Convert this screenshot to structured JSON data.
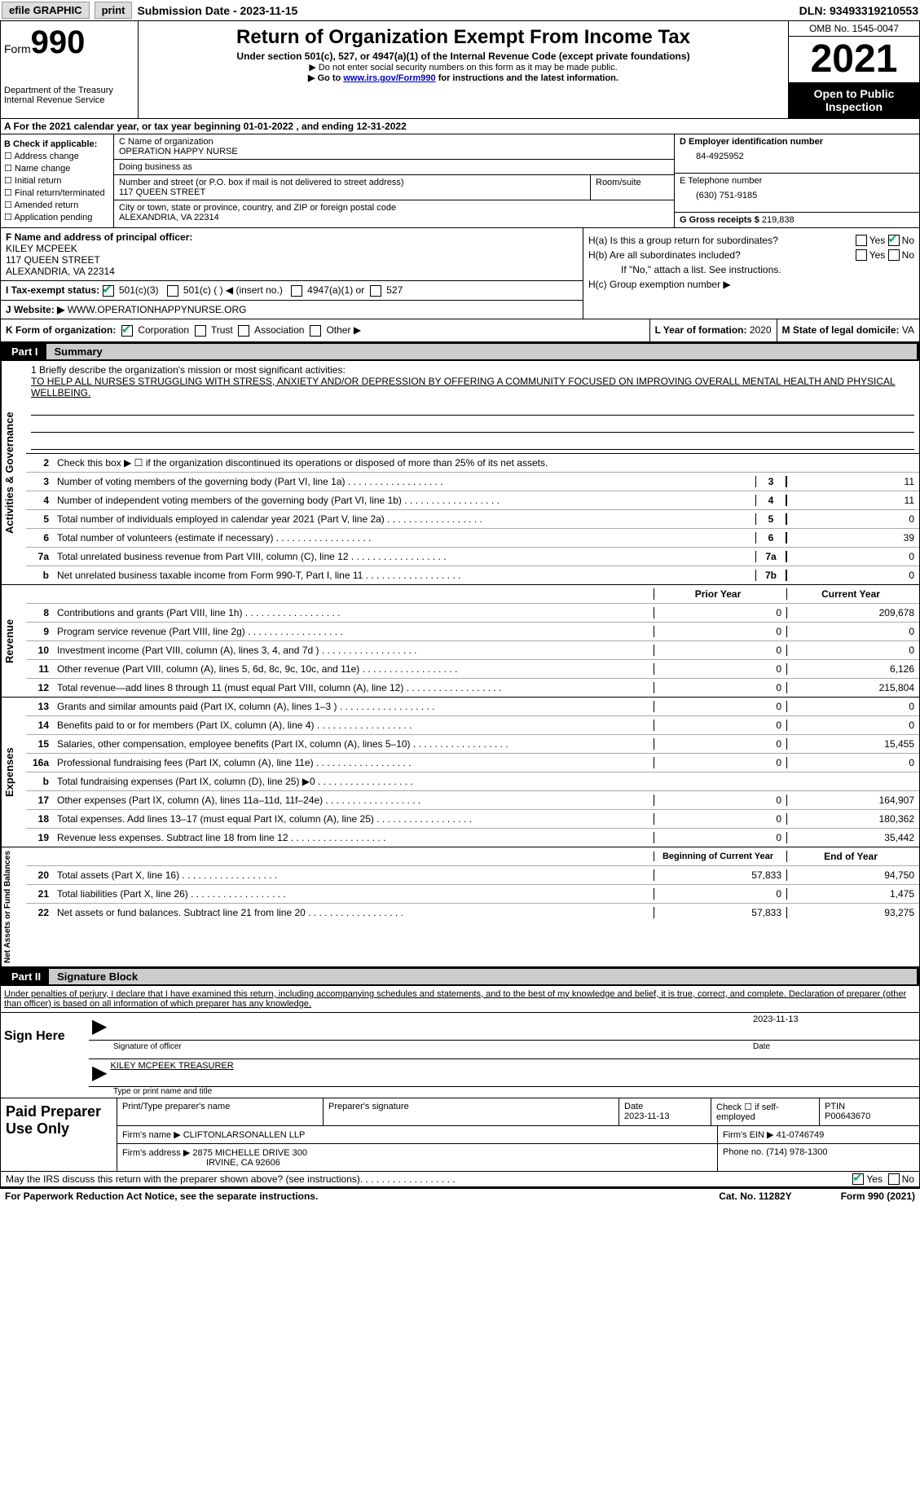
{
  "top": {
    "efile": "efile GRAPHIC",
    "print": "print",
    "sub_label": "Submission Date - ",
    "sub_date": "2023-11-15",
    "dln_label": "DLN: ",
    "dln": "93493319210553"
  },
  "header": {
    "form_word": "Form",
    "form_num": "990",
    "dept": "Department of the Treasury Internal Revenue Service",
    "title": "Return of Organization Exempt From Income Tax",
    "subtitle": "Under section 501(c), 527, or 4947(a)(1) of the Internal Revenue Code (except private foundations)",
    "note1": "▶ Do not enter social security numbers on this form as it may be made public.",
    "note2_pre": "▶ Go to ",
    "note2_link": "www.irs.gov/Form990",
    "note2_post": " for instructions and the latest information.",
    "omb": "OMB No. 1545-0047",
    "year": "2021",
    "inspect": "Open to Public Inspection"
  },
  "rowA": "A For the 2021 calendar year, or tax year beginning 01-01-2022    , and ending 12-31-2022",
  "colB": {
    "title": "B Check if applicable:",
    "items": [
      "Address change",
      "Name change",
      "Initial return",
      "Final return/terminated",
      "Amended return",
      "Application pending"
    ]
  },
  "colC": {
    "name_label": "C Name of organization",
    "name": "OPERATION HAPPY NURSE",
    "dba_label": "Doing business as",
    "dba": "",
    "addr_label": "Number and street (or P.O. box if mail is not delivered to street address)",
    "addr": "117 QUEEN STREET",
    "room_label": "Room/suite",
    "city_label": "City or town, state or province, country, and ZIP or foreign postal code",
    "city": "ALEXANDRIA, VA  22314"
  },
  "colD": {
    "ein_label": "D Employer identification number",
    "ein": "84-4925952",
    "phone_label": "E Telephone number",
    "phone": "(630) 751-9185",
    "gross_label": "G Gross receipts $ ",
    "gross": "219,838"
  },
  "rowF": {
    "label": "F  Name and address of principal officer:",
    "name": "KILEY MCPEEK",
    "addr1": "117 QUEEN STREET",
    "addr2": "ALEXANDRIA, VA  22314"
  },
  "rowH": {
    "ha": "H(a)  Is this a group return for subordinates?",
    "hb": "H(b)  Are all subordinates included?",
    "hb_note": "If \"No,\" attach a list. See instructions.",
    "hc": "H(c)  Group exemption number ▶"
  },
  "rowI": {
    "label": "I     Tax-exempt status:",
    "o1": "501(c)(3)",
    "o2": "501(c) (   ) ◀ (insert no.)",
    "o3": "4947(a)(1) or",
    "o4": "527"
  },
  "rowJ": {
    "label": "J    Website: ▶  ",
    "value": "WWW.OPERATIONHAPPYNURSE.ORG"
  },
  "rowK": {
    "label": "K Form of organization:",
    "corp": "Corporation",
    "trust": "Trust",
    "assoc": "Association",
    "other": "Other ▶"
  },
  "rowL": {
    "label": "L Year of formation: ",
    "value": "2020"
  },
  "rowM": {
    "label": "M State of legal domicile: ",
    "value": "VA"
  },
  "part1": {
    "label": "Part I",
    "title": "Summary"
  },
  "mission": {
    "label": "1   Briefly describe the organization's mission or most significant activities:",
    "text": "TO HELP ALL NURSES STRUGGLING WITH STRESS, ANXIETY AND/OR DEPRESSION BY OFFERING A COMMUNITY FOCUSED ON IMPROVING OVERALL MENTAL HEALTH AND PHYSICAL WELLBEING."
  },
  "line2": "Check this box ▶ ☐  if the organization discontinued its operations or disposed of more than 25% of its net assets.",
  "side_labels": {
    "gov": "Activities & Governance",
    "rev": "Revenue",
    "exp": "Expenses",
    "net": "Net Assets or Fund Balances"
  },
  "gov_rows": [
    {
      "n": "3",
      "d": "Number of voting members of the governing body (Part VI, line 1a)",
      "box": "3",
      "v": "11"
    },
    {
      "n": "4",
      "d": "Number of independent voting members of the governing body (Part VI, line 1b)",
      "box": "4",
      "v": "11"
    },
    {
      "n": "5",
      "d": "Total number of individuals employed in calendar year 2021 (Part V, line 2a)",
      "box": "5",
      "v": "0"
    },
    {
      "n": "6",
      "d": "Total number of volunteers (estimate if necessary)",
      "box": "6",
      "v": "39"
    },
    {
      "n": "7a",
      "d": "Total unrelated business revenue from Part VIII, column (C), line 12",
      "box": "7a",
      "v": "0"
    },
    {
      "n": "b",
      "d": "Net unrelated business taxable income from Form 990-T, Part I, line 11",
      "box": "7b",
      "v": "0"
    }
  ],
  "col_headers": {
    "prior": "Prior Year",
    "current": "Current Year"
  },
  "rev_rows": [
    {
      "n": "8",
      "d": "Contributions and grants (Part VIII, line 1h)",
      "p": "0",
      "c": "209,678"
    },
    {
      "n": "9",
      "d": "Program service revenue (Part VIII, line 2g)",
      "p": "0",
      "c": "0"
    },
    {
      "n": "10",
      "d": "Investment income (Part VIII, column (A), lines 3, 4, and 7d )",
      "p": "0",
      "c": "0"
    },
    {
      "n": "11",
      "d": "Other revenue (Part VIII, column (A), lines 5, 6d, 8c, 9c, 10c, and 11e)",
      "p": "0",
      "c": "6,126"
    },
    {
      "n": "12",
      "d": "Total revenue—add lines 8 through 11 (must equal Part VIII, column (A), line 12)",
      "p": "0",
      "c": "215,804"
    }
  ],
  "exp_rows": [
    {
      "n": "13",
      "d": "Grants and similar amounts paid (Part IX, column (A), lines 1–3 )",
      "p": "0",
      "c": "0"
    },
    {
      "n": "14",
      "d": "Benefits paid to or for members (Part IX, column (A), line 4)",
      "p": "0",
      "c": "0"
    },
    {
      "n": "15",
      "d": "Salaries, other compensation, employee benefits (Part IX, column (A), lines 5–10)",
      "p": "0",
      "c": "15,455"
    },
    {
      "n": "16a",
      "d": "Professional fundraising fees (Part IX, column (A), line 11e)",
      "p": "0",
      "c": "0"
    },
    {
      "n": "b",
      "d": "Total fundraising expenses (Part IX, column (D), line 25) ▶0",
      "p": "grey",
      "c": "grey"
    },
    {
      "n": "17",
      "d": "Other expenses (Part IX, column (A), lines 11a–11d, 11f–24e)",
      "p": "0",
      "c": "164,907"
    },
    {
      "n": "18",
      "d": "Total expenses. Add lines 13–17 (must equal Part IX, column (A), line 25)",
      "p": "0",
      "c": "180,362"
    },
    {
      "n": "19",
      "d": "Revenue less expenses. Subtract line 18 from line 12",
      "p": "0",
      "c": "35,442"
    }
  ],
  "net_headers": {
    "begin": "Beginning of Current Year",
    "end": "End of Year"
  },
  "net_rows": [
    {
      "n": "20",
      "d": "Total assets (Part X, line 16)",
      "p": "57,833",
      "c": "94,750"
    },
    {
      "n": "21",
      "d": "Total liabilities (Part X, line 26)",
      "p": "0",
      "c": "1,475"
    },
    {
      "n": "22",
      "d": "Net assets or fund balances. Subtract line 21 from line 20",
      "p": "57,833",
      "c": "93,275"
    }
  ],
  "part2": {
    "label": "Part II",
    "title": "Signature Block"
  },
  "declaration": "Under penalties of perjury, I declare that I have examined this return, including accompanying schedules and statements, and to the best of my knowledge and belief, it is true, correct, and complete. Declaration of preparer (other than officer) is based on all information of which preparer has any knowledge.",
  "sign": {
    "here": "Sign Here",
    "sig_label": "Signature of officer",
    "date": "2023-11-13",
    "date_label": "Date",
    "name": "KILEY MCPEEK  TREASURER",
    "name_label": "Type or print name and title"
  },
  "preparer": {
    "label": "Paid Preparer Use Only",
    "print_label": "Print/Type preparer's name",
    "sig_label": "Preparer's signature",
    "date_label": "Date",
    "date": "2023-11-13",
    "check_label": "Check ☐ if self-employed",
    "ptin_label": "PTIN",
    "ptin": "P00643670",
    "firm_name_label": "Firm's name     ▶ ",
    "firm_name": "CLIFTONLARSONALLEN LLP",
    "firm_ein_label": "Firm's EIN ▶ ",
    "firm_ein": "41-0746749",
    "firm_addr_label": "Firm's address ▶ ",
    "firm_addr1": "2875 MICHELLE DRIVE 300",
    "firm_addr2": "IRVINE, CA  92606",
    "phone_label": "Phone no. ",
    "phone": "(714) 978-1300"
  },
  "discuss": "May the IRS discuss this return with the preparer shown above? (see instructions)",
  "yes": "Yes",
  "no": "No",
  "footer": {
    "left": "For Paperwork Reduction Act Notice, see the separate instructions.",
    "mid": "Cat. No. 11282Y",
    "right": "Form 990 (2021)"
  }
}
